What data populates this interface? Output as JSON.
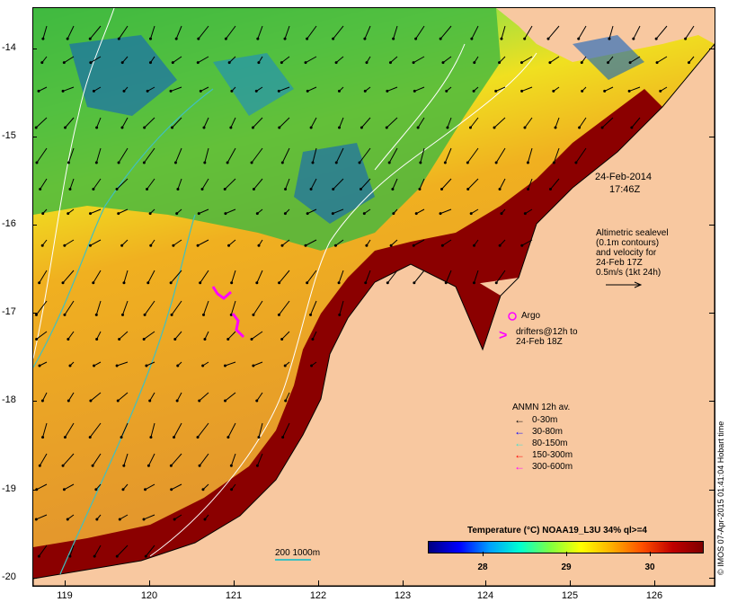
{
  "map": {
    "date_line1": "24-Feb-2014",
    "date_line2": "17:46Z",
    "altimetry": [
      "Altimetric sealevel",
      "(0.1m contours)",
      "and velocity for",
      "24-Feb 17Z",
      "0.5m/s (1kt 24h)"
    ],
    "argo_label": "Argo",
    "drifters": [
      "drifters@12h to",
      "24-Feb 18Z"
    ],
    "anmn_title": "ANMN 12h av.",
    "anmn_items": [
      {
        "label": "0-30m",
        "color": "#000000"
      },
      {
        "label": "30-80m",
        "color": "#0000ff"
      },
      {
        "label": "80-150m",
        "color": "#40e0d0"
      },
      {
        "label": "150-300m",
        "color": "#ff0000"
      },
      {
        "label": "300-600m",
        "color": "#ff00ff"
      }
    ],
    "colorbar_title": "Temperature (°C) NOAA19_L3U 34% ql>=4",
    "colorbar_ticks": [
      "28",
      "29",
      "30"
    ],
    "scale_label": "200  1000m",
    "credit": "© IMOS 07-Apr-2015 01:41:04 Hobart time",
    "y_labels": [
      "-14",
      "-15",
      "-16",
      "-17",
      "-18",
      "-19",
      "-20"
    ],
    "x_labels": [
      "119",
      "120",
      "121",
      "122",
      "123",
      "124",
      "125",
      "126"
    ],
    "colors": {
      "land": "#f8c8a0",
      "warm": "#8b0000",
      "mid": "#e89020",
      "cool": "#30c060"
    }
  }
}
